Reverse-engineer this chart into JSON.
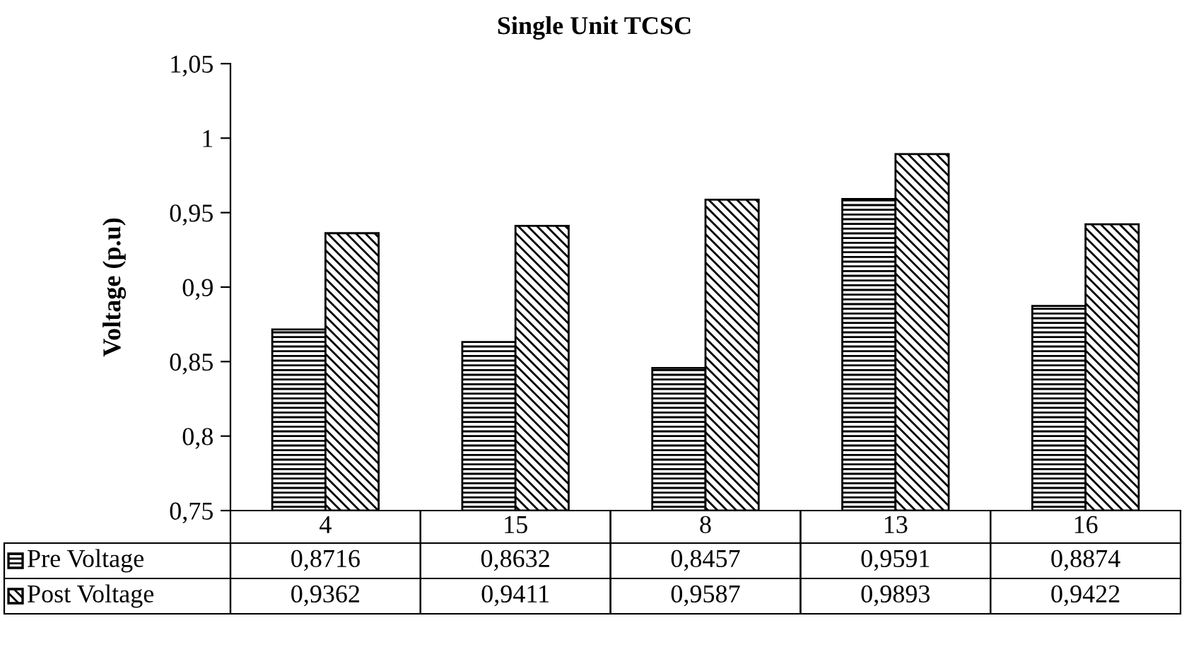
{
  "chart_data": {
    "type": "bar",
    "title": "Single Unit TCSC",
    "ylabel": "Voltage (p.u)",
    "categories": [
      "4",
      "15",
      "8",
      "13",
      "16"
    ],
    "series": [
      {
        "name": "Pre Voltage",
        "color": "#000000",
        "values": [
          0.8716,
          0.8632,
          0.8457,
          0.9591,
          0.8874
        ],
        "value_labels": [
          "0,8716",
          "0,8632",
          "0,8457",
          "0,9591",
          "0,8874"
        ]
      },
      {
        "name": "Post Voltage",
        "color": "#000000",
        "values": [
          0.9362,
          0.9411,
          0.9587,
          0.9893,
          0.9422
        ],
        "value_labels": [
          "0,9362",
          "0,9411",
          "0,9587",
          "0,9893",
          "0,9422"
        ]
      }
    ],
    "ylim": [
      0.75,
      1.05
    ],
    "yticks": [
      {
        "value": 0.75,
        "label": "0,75"
      },
      {
        "value": 0.8,
        "label": "0,8"
      },
      {
        "value": 0.85,
        "label": "0,85"
      },
      {
        "value": 0.9,
        "label": "0,9"
      },
      {
        "value": 0.95,
        "label": "0,95"
      },
      {
        "value": 1,
        "label": "1"
      },
      {
        "value": 1.05,
        "label": "1,05"
      }
    ],
    "grid": false,
    "legend": "bottom"
  }
}
